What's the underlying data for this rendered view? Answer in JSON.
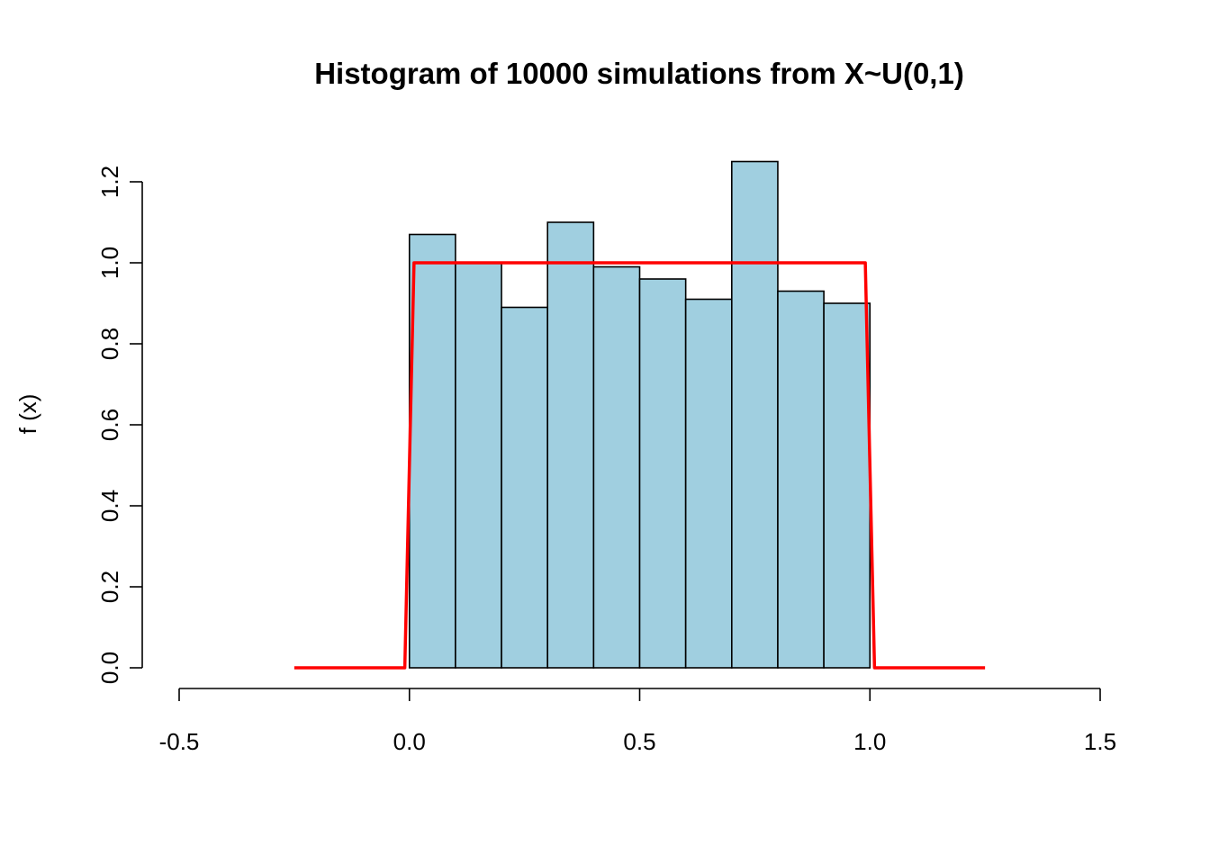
{
  "chart_data": {
    "type": "bar",
    "title": "Histogram of 10000 simulations from X~U(0,1)",
    "xlabel": "",
    "ylabel": "f (x)",
    "xlim": [
      -0.5,
      1.5
    ],
    "ylim": [
      0,
      1.2
    ],
    "x_ticks": [
      -0.5,
      0.0,
      0.5,
      1.0,
      1.5
    ],
    "x_tick_labels": [
      "-0.5",
      "0.0",
      "0.5",
      "1.0",
      "1.5"
    ],
    "y_ticks": [
      0.0,
      0.2,
      0.4,
      0.6,
      0.8,
      1.0,
      1.2
    ],
    "y_tick_labels": [
      "0.0",
      "0.2",
      "0.4",
      "0.6",
      "0.8",
      "1.0",
      "1.2"
    ],
    "grid": false,
    "bins": [
      {
        "x0": 0.0,
        "x1": 0.1,
        "density": 1.07
      },
      {
        "x0": 0.1,
        "x1": 0.2,
        "density": 1.0
      },
      {
        "x0": 0.2,
        "x1": 0.3,
        "density": 0.89
      },
      {
        "x0": 0.3,
        "x1": 0.4,
        "density": 1.1
      },
      {
        "x0": 0.4,
        "x1": 0.5,
        "density": 0.99
      },
      {
        "x0": 0.5,
        "x1": 0.6,
        "density": 0.96
      },
      {
        "x0": 0.6,
        "x1": 0.7,
        "density": 0.91
      },
      {
        "x0": 0.7,
        "x1": 0.8,
        "density": 1.25
      },
      {
        "x0": 0.8,
        "x1": 0.9,
        "density": 0.93
      },
      {
        "x0": 0.9,
        "x1": 1.0,
        "density": 0.9
      }
    ],
    "density_curve": {
      "x": [
        -0.25,
        -0.01,
        0.01,
        0.99,
        1.01,
        1.25
      ],
      "y": [
        0,
        0,
        1,
        1,
        0,
        0
      ]
    },
    "colors": {
      "bar_fill": "#a0cfe0",
      "bar_stroke": "#000000",
      "curve": "#ff0000",
      "axis": "#000000"
    }
  }
}
